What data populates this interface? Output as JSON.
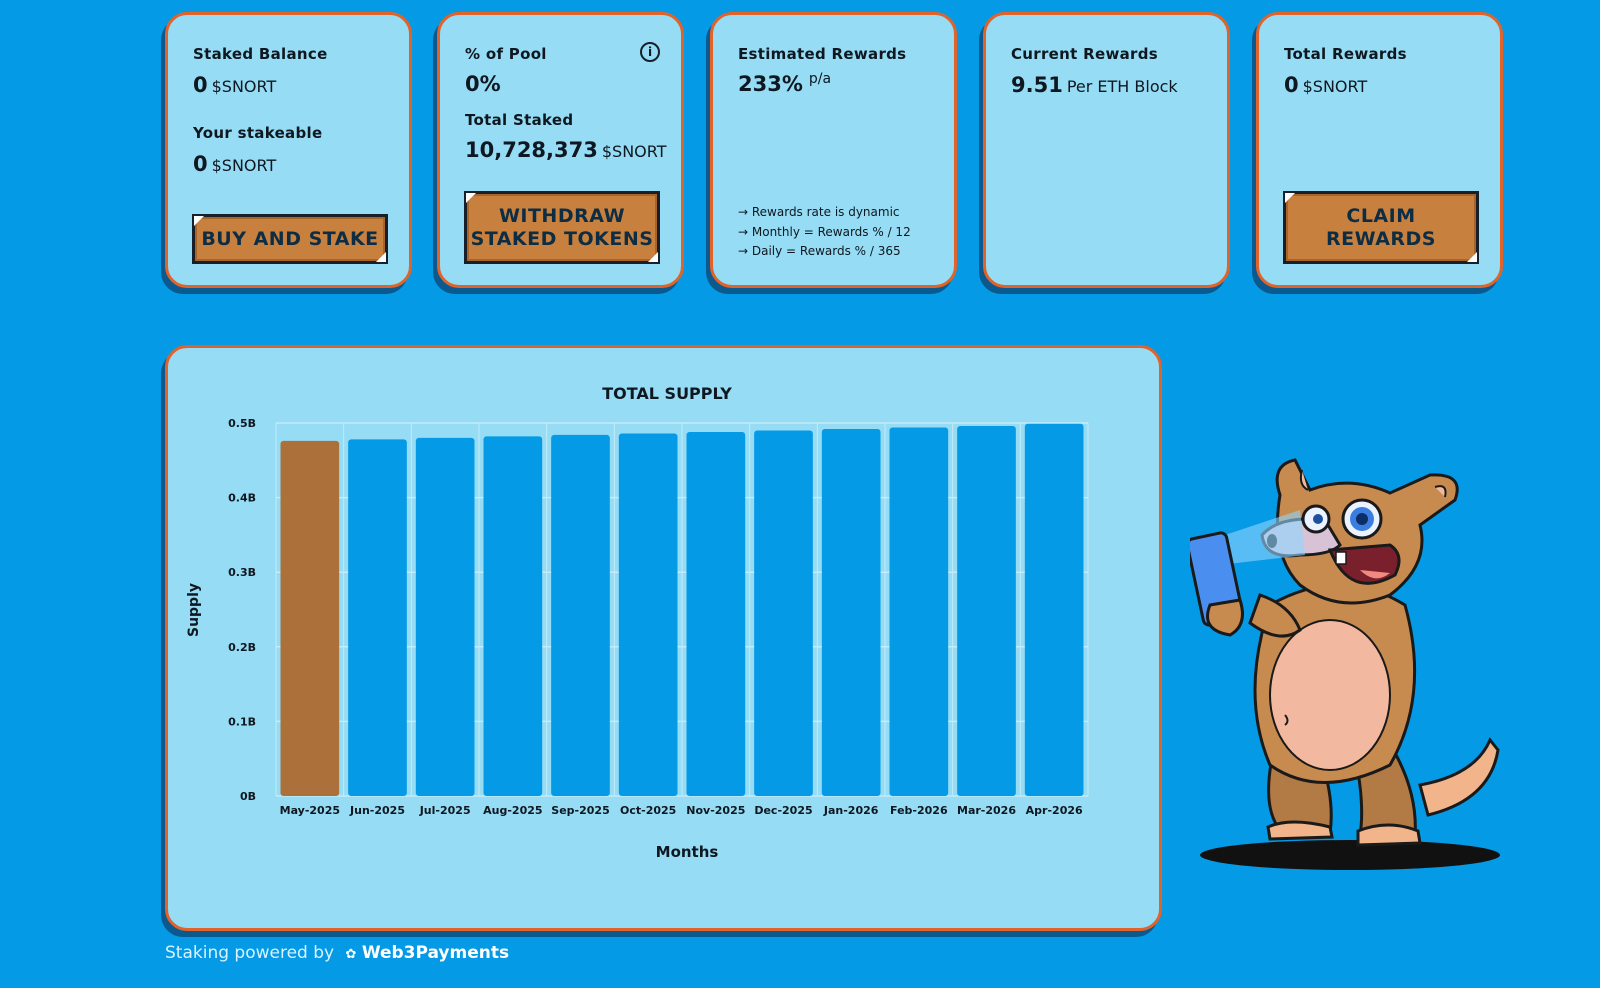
{
  "cards": {
    "staked_balance": {
      "label": "Staked Balance",
      "value": "0",
      "unit": "$SNORT",
      "stakeable_label": "Your stakeable",
      "stakeable_value": "0",
      "stakeable_unit": "$SNORT",
      "button": "BUY AND STAKE"
    },
    "pool": {
      "label": "% of Pool",
      "value": "0%",
      "total_label": "Total Staked",
      "total_value": "10,728,373",
      "total_unit": "$SNORT",
      "button": "WITHDRAW\nSTAKED TOKENS",
      "info_icon": "i"
    },
    "estimated": {
      "label": "Estimated Rewards",
      "value": "233%",
      "suffix": "p/a",
      "notes": [
        "→ Rewards rate is dynamic",
        "→ Monthly = Rewards % / 12",
        "→ Daily = Rewards % / 365"
      ]
    },
    "current": {
      "label": "Current Rewards",
      "value": "9.51",
      "unit": "Per ETH Block"
    },
    "total": {
      "label": "Total Rewards",
      "value": "0",
      "unit": "$SNORT",
      "button": "CLAIM\nREWARDS"
    }
  },
  "chart_data": {
    "type": "bar",
    "title": "TOTAL SUPPLY",
    "xlabel": "Months",
    "ylabel": "Supply",
    "categories": [
      "May-2025",
      "Jun-2025",
      "Jul-2025",
      "Aug-2025",
      "Sep-2025",
      "Oct-2025",
      "Nov-2025",
      "Dec-2025",
      "Jan-2026",
      "Feb-2026",
      "Mar-2026",
      "Apr-2026"
    ],
    "values": [
      0.476,
      0.478,
      0.48,
      0.482,
      0.484,
      0.486,
      0.488,
      0.49,
      0.492,
      0.494,
      0.496,
      0.499
    ],
    "value_unit": "B",
    "yticks": [
      "0B",
      "0.1B",
      "0.2B",
      "0.3B",
      "0.4B",
      "0.5B"
    ],
    "ylim": [
      0,
      0.5
    ],
    "grid": true,
    "colors": {
      "highlight": "#ac713b",
      "bar": "#059ae6",
      "grid": "#c4ecfa"
    },
    "highlight_index": 0
  },
  "footer": {
    "prefix": "Staking powered by",
    "brand": "Web3Payments"
  },
  "mascot": {
    "icon": "armadillo-with-phone-illustration"
  }
}
